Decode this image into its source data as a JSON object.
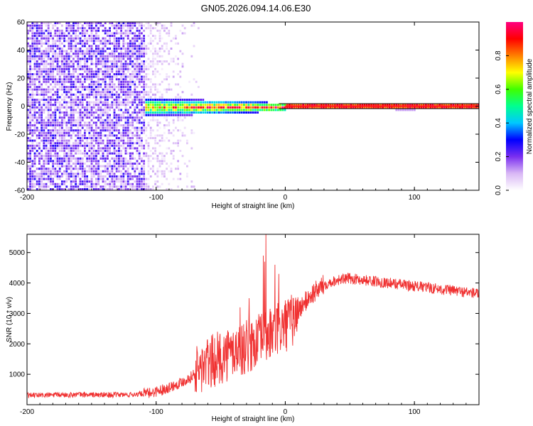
{
  "title": "GN05.2026.094.14.06.E30",
  "colors": {
    "snr_line": "#f03030",
    "axis": "#000000",
    "background": "#ffffff"
  },
  "chart_data": [
    {
      "type": "heatmap",
      "xlabel": "Height of straight line (km)",
      "ylabel": "Frequency (Hz)",
      "xlim": [
        -200,
        150
      ],
      "ylim": [
        -60,
        60
      ],
      "xticks": [
        -200,
        -100,
        0,
        100
      ],
      "yticks": [
        60,
        40,
        20,
        0,
        -20,
        -40,
        -60
      ],
      "grid": false,
      "colorbar": {
        "label": "Normalized spectral amplitude",
        "range": [
          0.0,
          1.0
        ],
        "ticks": [
          0.0,
          0.2,
          0.4,
          0.6,
          0.8
        ],
        "colormap": [
          "#ffffff",
          "#d9b8f5",
          "#7a2ff0",
          "#0000ff",
          "#00c8ff",
          "#00ff90",
          "#40ff00",
          "#ffff00",
          "#ff8000",
          "#ff0000",
          "#ff0080"
        ]
      },
      "regions": [
        {
          "x_range": [
            -200,
            -110
          ],
          "description_value": "broadband noise",
          "amplitude": 0.18
        },
        {
          "x_range": [
            -110,
            -65
          ],
          "description_value": "fading noise",
          "amplitude": 0.06
        },
        {
          "x_range": [
            -110,
            0
          ],
          "freq_center": 0,
          "freq_halfwidth": 7,
          "amplitude": 0.6
        },
        {
          "x_range": [
            0,
            150
          ],
          "freq_center": 0,
          "freq_halfwidth": 1.5,
          "amplitude": 0.95
        }
      ]
    },
    {
      "type": "line",
      "xlabel": "Height of straight line (km)",
      "ylabel": "SNR (10 * v/v)",
      "xlim": [
        -200,
        150
      ],
      "ylim": [
        0,
        5600
      ],
      "xticks": [
        -200,
        -100,
        0,
        100
      ],
      "yticks": [
        1000,
        2000,
        3000,
        4000,
        5000
      ],
      "grid": false,
      "series": [
        {
          "x": [
            -200,
            -180,
            -160,
            -140,
            -120,
            -105,
            -95,
            -85,
            -75,
            -68,
            -62,
            -55,
            -48,
            -40,
            -32,
            -25,
            -18,
            -12,
            -6,
            0,
            6,
            12,
            20,
            30,
            40,
            50,
            60,
            70,
            80,
            90,
            100,
            110,
            120,
            130,
            140,
            150
          ],
          "values": [
            300,
            320,
            330,
            320,
            330,
            380,
            500,
            650,
            850,
            1100,
            1300,
            1450,
            1600,
            1750,
            1850,
            2000,
            2150,
            2300,
            2450,
            2600,
            2800,
            3200,
            3600,
            3950,
            4100,
            4150,
            4100,
            4050,
            4000,
            3950,
            3900,
            3850,
            3800,
            3750,
            3700,
            3650
          ]
        }
      ],
      "spikes": [
        {
          "x": -15,
          "y": 5600
        },
        {
          "x": -17,
          "y": 4900
        },
        {
          "x": -16,
          "y": 4700
        },
        {
          "x": -8,
          "y": 4600
        },
        {
          "x": -5,
          "y": 4300
        },
        {
          "x": -35,
          "y": 3200
        },
        {
          "x": -28,
          "y": 3500
        }
      ]
    }
  ]
}
